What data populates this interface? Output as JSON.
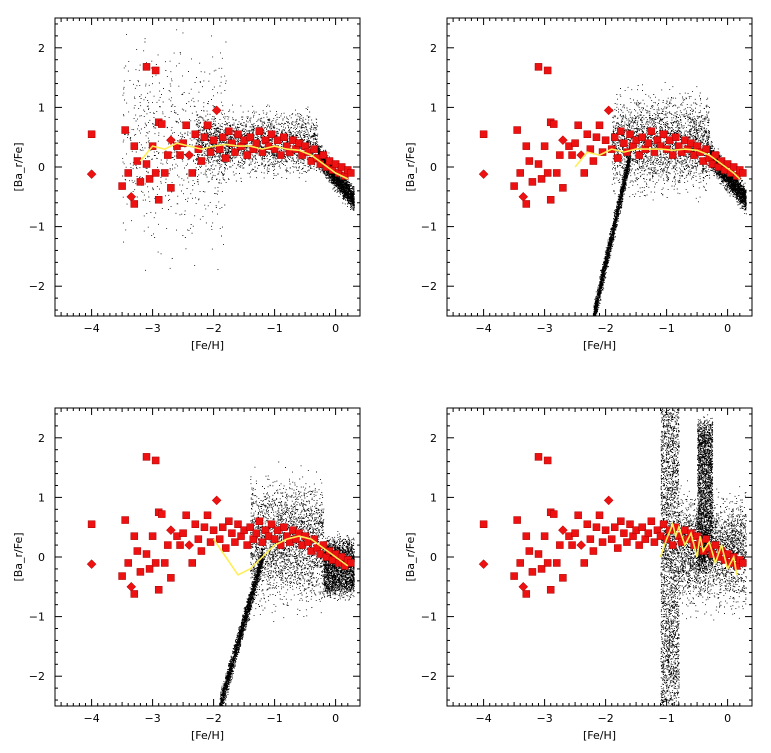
{
  "chart_data": [
    {
      "type": "scatter",
      "title": "",
      "xlabel": "[Fe/H]",
      "ylabel": "[Ba_r/Fe]",
      "xlim": [
        -4.6,
        0.4
      ],
      "ylim": [
        -2.5,
        2.5
      ],
      "xticks": [
        -4,
        -3,
        -2,
        -1,
        0
      ],
      "yticks": [
        -2,
        -1,
        0,
        1,
        2
      ],
      "grid": false,
      "legend": "none",
      "colors": {
        "model_points": "#000000",
        "observations": "#ee1111",
        "mean_line": "#ffee55"
      },
      "model_cloud": {
        "description_regions": [
          {
            "x_range": [
              -3.5,
              -1.8
            ],
            "y_center": 0.4,
            "y_spread": 1.6,
            "density": "sparse"
          },
          {
            "x_range": [
              -2.3,
              -0.3
            ],
            "y_center": 0.4,
            "y_spread": 0.45,
            "density": "dense"
          },
          {
            "x_range": [
              -0.3,
              0.3
            ],
            "y_from": 0.2,
            "y_to": -0.55,
            "density": "dense"
          }
        ]
      },
      "mean_line": {
        "x": [
          -3.2,
          -3.0,
          -2.8,
          -2.6,
          -2.4,
          -2.2,
          -2.0,
          -1.8,
          -1.6,
          -1.4,
          -1.2,
          -1.0,
          -0.8,
          -0.6,
          -0.4,
          -0.2,
          0.0,
          0.2
        ],
        "y": [
          0.1,
          0.35,
          0.3,
          0.4,
          0.35,
          0.3,
          0.35,
          0.38,
          0.35,
          0.35,
          0.3,
          0.35,
          0.3,
          0.28,
          0.2,
          0.05,
          -0.1,
          -0.2
        ]
      }
    },
    {
      "type": "scatter",
      "title": "",
      "xlabel": "[Fe/H]",
      "ylabel": "[Ba_r/Fe]",
      "xlim": [
        -4.6,
        0.4
      ],
      "ylim": [
        -2.5,
        2.5
      ],
      "xticks": [
        -4,
        -3,
        -2,
        -1,
        0
      ],
      "yticks": [
        -2,
        -1,
        0,
        1,
        2
      ],
      "grid": false,
      "legend": "none",
      "model_cloud": {
        "description_regions": [
          {
            "x_range": [
              -2.2,
              -1.6
            ],
            "y_from": -2.5,
            "y_to": 0.2,
            "density": "dense"
          },
          {
            "x_range": [
              -1.9,
              -0.3
            ],
            "y_center": 0.4,
            "y_spread": 0.7,
            "density": "dense"
          },
          {
            "x_range": [
              -0.3,
              0.3
            ],
            "y_from": 0.2,
            "y_to": -0.55,
            "density": "dense"
          }
        ]
      },
      "mean_line": {
        "x": [
          -2.5,
          -2.3,
          -2.1,
          -1.9,
          -1.7,
          -1.5,
          -1.3,
          -1.1,
          -0.9,
          -0.7,
          -0.5,
          -0.3,
          -0.1,
          0.1,
          0.2
        ],
        "y": [
          0.0,
          0.25,
          0.2,
          0.3,
          0.25,
          0.3,
          0.3,
          0.3,
          0.28,
          0.3,
          0.28,
          0.2,
          0.05,
          -0.1,
          -0.2
        ]
      }
    },
    {
      "type": "scatter",
      "title": "",
      "xlabel": "[Fe/H]",
      "ylabel": "[Ba_r/Fe]",
      "xlim": [
        -4.6,
        0.4
      ],
      "ylim": [
        -2.5,
        2.5
      ],
      "xticks": [
        -4,
        -3,
        -2,
        -1,
        0
      ],
      "yticks": [
        -2,
        -1,
        0,
        1,
        2
      ],
      "grid": false,
      "legend": "none",
      "model_cloud": {
        "description_regions": [
          {
            "x_range": [
              -1.9,
              -1.2
            ],
            "y_from": -2.5,
            "y_to": 0.0,
            "density": "dense"
          },
          {
            "x_range": [
              -1.4,
              -0.2
            ],
            "y_center": 0.25,
            "y_spread": 0.9,
            "density": "dense"
          },
          {
            "x_range": [
              -0.2,
              0.3
            ],
            "y_from": 0.2,
            "y_to": -0.55,
            "density": "dense"
          }
        ]
      },
      "mean_line": {
        "x": [
          -2.0,
          -1.8,
          -1.6,
          -1.4,
          -1.2,
          -1.0,
          -0.8,
          -0.6,
          -0.4,
          -0.2,
          0.0,
          0.2
        ],
        "y": [
          0.3,
          0.0,
          -0.3,
          -0.2,
          0.0,
          0.2,
          0.3,
          0.35,
          0.3,
          0.15,
          0.0,
          -0.15
        ]
      }
    },
    {
      "type": "scatter",
      "title": "",
      "xlabel": "[Fe/H]",
      "ylabel": "[Ba_r/Fe]",
      "xlim": [
        -4.6,
        0.4
      ],
      "ylim": [
        -2.5,
        2.5
      ],
      "xticks": [
        -4,
        -3,
        -2,
        -1,
        0
      ],
      "yticks": [
        -2,
        -1,
        0,
        1,
        2
      ],
      "grid": false,
      "legend": "none",
      "model_cloud": {
        "description_regions": [
          {
            "x_range": [
              -1.1,
              -0.8
            ],
            "y_from": -2.5,
            "y_to": 2.5,
            "density": "dense"
          },
          {
            "x_range": [
              -0.5,
              -0.25
            ],
            "y_from": -0.1,
            "y_to": 2.2,
            "density": "dense"
          },
          {
            "x_range": [
              -0.8,
              0.3
            ],
            "y_center": 0.1,
            "y_spread": 0.8,
            "density": "dense"
          }
        ]
      },
      "mean_line": {
        "x": [
          -1.1,
          -1.0,
          -0.9,
          -0.85,
          -0.8,
          -0.7,
          -0.6,
          -0.5,
          -0.45,
          -0.4,
          -0.3,
          -0.2,
          -0.1,
          0.0,
          0.1,
          0.15
        ],
        "y": [
          0.0,
          0.3,
          0.55,
          0.35,
          0.5,
          0.2,
          0.4,
          0.0,
          0.35,
          0.1,
          0.25,
          -0.1,
          0.2,
          -0.2,
          0.0,
          -0.3
        ]
      }
    }
  ],
  "observations": [
    {
      "x": -4.0,
      "y": 0.55,
      "m": "s"
    },
    {
      "x": -4.0,
      "y": -0.12,
      "m": "d"
    },
    {
      "x": -3.45,
      "y": 0.62,
      "m": "s"
    },
    {
      "x": -3.5,
      "y": -0.32,
      "m": "s"
    },
    {
      "x": -3.4,
      "y": -0.1,
      "m": "s"
    },
    {
      "x": -3.35,
      "y": -0.5,
      "m": "d"
    },
    {
      "x": -3.3,
      "y": -0.62,
      "m": "s"
    },
    {
      "x": -3.25,
      "y": 0.1,
      "m": "s"
    },
    {
      "x": -3.3,
      "y": 0.35,
      "m": "s"
    },
    {
      "x": -3.2,
      "y": -0.25,
      "m": "s"
    },
    {
      "x": -3.1,
      "y": 1.68,
      "m": "s"
    },
    {
      "x": -3.1,
      "y": 0.05,
      "m": "s"
    },
    {
      "x": -3.05,
      "y": -0.2,
      "m": "s"
    },
    {
      "x": -3.0,
      "y": 0.35,
      "m": "s"
    },
    {
      "x": -2.95,
      "y": 1.62,
      "m": "s"
    },
    {
      "x": -2.95,
      "y": -0.1,
      "m": "s"
    },
    {
      "x": -2.9,
      "y": -0.55,
      "m": "s"
    },
    {
      "x": -2.9,
      "y": 0.75,
      "m": "s"
    },
    {
      "x": -2.85,
      "y": 0.72,
      "m": "s"
    },
    {
      "x": -2.8,
      "y": -0.1,
      "m": "s"
    },
    {
      "x": -2.75,
      "y": 0.2,
      "m": "s"
    },
    {
      "x": -2.7,
      "y": 0.45,
      "m": "d"
    },
    {
      "x": -2.7,
      "y": -0.35,
      "m": "s"
    },
    {
      "x": -2.6,
      "y": 0.35,
      "m": "s"
    },
    {
      "x": -2.55,
      "y": 0.2,
      "m": "s"
    },
    {
      "x": -2.5,
      "y": 0.4,
      "m": "s"
    },
    {
      "x": -2.45,
      "y": 0.7,
      "m": "s"
    },
    {
      "x": -2.4,
      "y": 0.2,
      "m": "d"
    },
    {
      "x": -2.35,
      "y": -0.1,
      "m": "s"
    },
    {
      "x": -2.3,
      "y": 0.55,
      "m": "s"
    },
    {
      "x": -2.25,
      "y": 0.3,
      "m": "s"
    },
    {
      "x": -2.2,
      "y": 0.1,
      "m": "s"
    },
    {
      "x": -2.15,
      "y": 0.5,
      "m": "s"
    },
    {
      "x": -2.1,
      "y": 0.7,
      "m": "s"
    },
    {
      "x": -2.05,
      "y": 0.25,
      "m": "s"
    },
    {
      "x": -2.0,
      "y": 0.45,
      "m": "s"
    },
    {
      "x": -1.95,
      "y": 0.95,
      "m": "d"
    },
    {
      "x": -1.9,
      "y": 0.3,
      "m": "s"
    },
    {
      "x": -1.85,
      "y": 0.5,
      "m": "s"
    },
    {
      "x": -1.8,
      "y": 0.15,
      "m": "s"
    },
    {
      "x": -1.75,
      "y": 0.6,
      "m": "s"
    },
    {
      "x": -1.7,
      "y": 0.4,
      "m": "s"
    },
    {
      "x": -1.65,
      "y": 0.25,
      "m": "s"
    },
    {
      "x": -1.6,
      "y": 0.55,
      "m": "s"
    },
    {
      "x": -1.55,
      "y": 0.35,
      "m": "s"
    },
    {
      "x": -1.5,
      "y": 0.45,
      "m": "s"
    },
    {
      "x": -1.45,
      "y": 0.2,
      "m": "s"
    },
    {
      "x": -1.4,
      "y": 0.5,
      "m": "s"
    },
    {
      "x": -1.35,
      "y": 0.3,
      "m": "s"
    },
    {
      "x": -1.3,
      "y": 0.4,
      "m": "s"
    },
    {
      "x": -1.25,
      "y": 0.6,
      "m": "s"
    },
    {
      "x": -1.2,
      "y": 0.25,
      "m": "s"
    },
    {
      "x": -1.15,
      "y": 0.45,
      "m": "s"
    },
    {
      "x": -1.1,
      "y": 0.35,
      "m": "s"
    },
    {
      "x": -1.05,
      "y": 0.55,
      "m": "s"
    },
    {
      "x": -1.0,
      "y": 0.3,
      "m": "s"
    },
    {
      "x": -0.95,
      "y": 0.45,
      "m": "s"
    },
    {
      "x": -0.9,
      "y": 0.2,
      "m": "s"
    },
    {
      "x": -0.85,
      "y": 0.5,
      "m": "s"
    },
    {
      "x": -0.8,
      "y": 0.35,
      "m": "s"
    },
    {
      "x": -0.75,
      "y": 0.25,
      "m": "s"
    },
    {
      "x": -0.7,
      "y": 0.45,
      "m": "s"
    },
    {
      "x": -0.65,
      "y": 0.3,
      "m": "s"
    },
    {
      "x": -0.6,
      "y": 0.4,
      "m": "s"
    },
    {
      "x": -0.55,
      "y": 0.2,
      "m": "s"
    },
    {
      "x": -0.5,
      "y": 0.35,
      "m": "s"
    },
    {
      "x": -0.45,
      "y": 0.25,
      "m": "s"
    },
    {
      "x": -0.4,
      "y": 0.1,
      "m": "s"
    },
    {
      "x": -0.35,
      "y": 0.3,
      "m": "s"
    },
    {
      "x": -0.3,
      "y": 0.15,
      "m": "s"
    },
    {
      "x": -0.25,
      "y": 0.05,
      "m": "s"
    },
    {
      "x": -0.2,
      "y": 0.2,
      "m": "s"
    },
    {
      "x": -0.15,
      "y": 0.0,
      "m": "s"
    },
    {
      "x": -0.1,
      "y": 0.1,
      "m": "s"
    },
    {
      "x": -0.05,
      "y": -0.05,
      "m": "s"
    },
    {
      "x": 0.0,
      "y": 0.05,
      "m": "s"
    },
    {
      "x": 0.05,
      "y": -0.1,
      "m": "s"
    },
    {
      "x": 0.1,
      "y": 0.0,
      "m": "s"
    },
    {
      "x": 0.15,
      "y": -0.15,
      "m": "s"
    },
    {
      "x": 0.2,
      "y": -0.05,
      "m": "s"
    },
    {
      "x": 0.25,
      "y": -0.1,
      "m": "s"
    }
  ]
}
